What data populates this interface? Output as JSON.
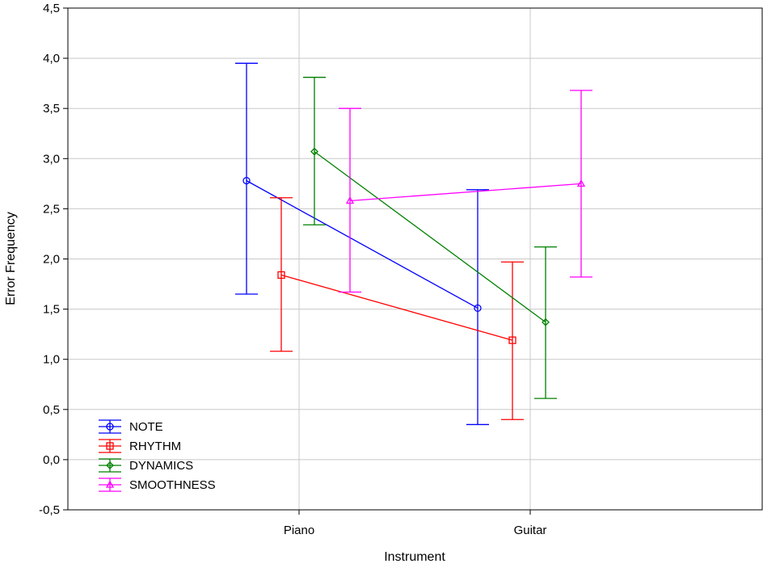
{
  "chart_data": {
    "type": "line",
    "categories": [
      "Piano",
      "Guitar"
    ],
    "xlabel": "Instrument",
    "ylabel": "Error Frequency",
    "ylim": [
      -0.5,
      4.5
    ],
    "yticks": [
      "-0,5",
      "0,0",
      "0,5",
      "1,0",
      "1,5",
      "2,0",
      "2,5",
      "3,0",
      "3,5",
      "4,0",
      "4,5"
    ],
    "ytick_values": [
      -0.5,
      0.0,
      0.5,
      1.0,
      1.5,
      2.0,
      2.5,
      3.0,
      3.5,
      4.0,
      4.5
    ],
    "grid": true,
    "legend_position": "bottom-left",
    "error_bars": true,
    "series": [
      {
        "name": "NOTE",
        "color": "#0000ff",
        "marker": "circle",
        "values": [
          2.78,
          1.51
        ],
        "lower": [
          1.65,
          0.35
        ],
        "upper": [
          3.95,
          2.69
        ]
      },
      {
        "name": "RHYTHM",
        "color": "#ff0000",
        "marker": "square",
        "values": [
          1.84,
          1.19
        ],
        "lower": [
          1.08,
          0.4
        ],
        "upper": [
          2.61,
          1.97
        ]
      },
      {
        "name": "DYNAMICS",
        "color": "#008000",
        "marker": "diamond",
        "values": [
          3.07,
          1.37
        ],
        "lower": [
          2.34,
          0.61
        ],
        "upper": [
          3.81,
          2.12
        ]
      },
      {
        "name": "SMOOTHNESS",
        "color": "#ff00ff",
        "marker": "triangle",
        "values": [
          2.58,
          2.75
        ],
        "lower": [
          1.67,
          1.82
        ],
        "upper": [
          3.5,
          3.68
        ]
      }
    ]
  }
}
